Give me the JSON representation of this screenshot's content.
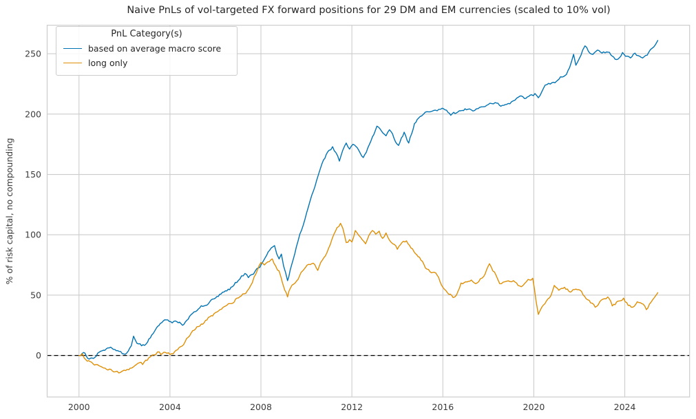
{
  "title": "Naive PnLs of vol-targeted FX forward positions for 29 DM and EM currencies (scaled to 10% vol)",
  "ylabel": "% of risk capital, no compounding",
  "legend": {
    "title": "PnL Category(s)",
    "entries": [
      {
        "label": "based on average macro score",
        "color": "#0173b2"
      },
      {
        "label": "long only",
        "color": "#de8f05"
      }
    ]
  },
  "colors": {
    "macro_line": "#0173b2",
    "long_only_line": "#de8f05",
    "grid": "#cccccc",
    "spine": "#cccccc",
    "zero_line": "#000000",
    "tick_text": "#3b3b3b",
    "title_text": "#262626"
  },
  "chart_data": {
    "type": "line",
    "title": "Naive PnLs of vol-targeted FX forward positions for 29 DM and EM currencies (scaled to 10% vol)",
    "xlabel": "",
    "ylabel": "% of risk capital, no compounding",
    "grid": true,
    "legend_position": "upper-left",
    "legend_title": "PnL Category(s)",
    "xlim": [
      1998.6,
      2026.85
    ],
    "ylim": [
      -34.4,
      273.6
    ],
    "xticks": [
      2000,
      2004,
      2008,
      2012,
      2016,
      2020,
      2024
    ],
    "yticks": [
      0,
      50,
      100,
      150,
      200,
      250
    ],
    "zero_line": {
      "y": 0,
      "style": "dashed",
      "color": "#000000"
    },
    "series": [
      {
        "name": "based on average macro score",
        "color": "#0173b2",
        "points": [
          [
            2000.0,
            0
          ],
          [
            2000.2,
            2.5
          ],
          [
            2000.45,
            -3
          ],
          [
            2000.7,
            -1.5
          ],
          [
            2000.95,
            3.5
          ],
          [
            2001.2,
            5.5
          ],
          [
            2001.45,
            6
          ],
          [
            2001.7,
            4
          ],
          [
            2001.9,
            1.5
          ],
          [
            2002.1,
            2
          ],
          [
            2002.3,
            8
          ],
          [
            2002.4,
            16
          ],
          [
            2002.55,
            10
          ],
          [
            2002.75,
            8
          ],
          [
            2002.95,
            9.5
          ],
          [
            2003.2,
            17
          ],
          [
            2003.45,
            24
          ],
          [
            2003.7,
            28.5
          ],
          [
            2003.9,
            29.5
          ],
          [
            2004.1,
            27
          ],
          [
            2004.3,
            28
          ],
          [
            2004.55,
            25
          ],
          [
            2004.8,
            30
          ],
          [
            2005.0,
            35
          ],
          [
            2005.25,
            38.5
          ],
          [
            2005.5,
            41
          ],
          [
            2005.75,
            44.5
          ],
          [
            2006.0,
            47.5
          ],
          [
            2006.25,
            51
          ],
          [
            2006.5,
            53.5
          ],
          [
            2006.75,
            57
          ],
          [
            2007.0,
            62
          ],
          [
            2007.15,
            66
          ],
          [
            2007.3,
            68
          ],
          [
            2007.45,
            64.5
          ],
          [
            2007.6,
            67
          ],
          [
            2007.75,
            70
          ],
          [
            2007.95,
            73
          ],
          [
            2008.1,
            78
          ],
          [
            2008.25,
            83
          ],
          [
            2008.45,
            89
          ],
          [
            2008.6,
            91
          ],
          [
            2008.7,
            84
          ],
          [
            2008.8,
            80
          ],
          [
            2008.9,
            84
          ],
          [
            2009.0,
            74
          ],
          [
            2009.17,
            62
          ],
          [
            2009.35,
            75
          ],
          [
            2009.56,
            90
          ],
          [
            2009.86,
            108
          ],
          [
            2010.16,
            128
          ],
          [
            2010.45,
            145
          ],
          [
            2010.75,
            162
          ],
          [
            2011.0,
            170
          ],
          [
            2011.15,
            173
          ],
          [
            2011.3,
            168
          ],
          [
            2011.45,
            161
          ],
          [
            2011.6,
            170
          ],
          [
            2011.75,
            176
          ],
          [
            2011.9,
            171
          ],
          [
            2012.05,
            175
          ],
          [
            2012.3,
            170
          ],
          [
            2012.5,
            164
          ],
          [
            2012.7,
            172
          ],
          [
            2012.9,
            181
          ],
          [
            2013.1,
            190
          ],
          [
            2013.3,
            186
          ],
          [
            2013.5,
            182
          ],
          [
            2013.65,
            187
          ],
          [
            2013.85,
            180
          ],
          [
            2014.05,
            174
          ],
          [
            2014.3,
            185
          ],
          [
            2014.5,
            176
          ],
          [
            2014.75,
            192
          ],
          [
            2015.0,
            198
          ],
          [
            2015.3,
            202
          ],
          [
            2015.6,
            203
          ],
          [
            2015.9,
            204
          ],
          [
            2016.1,
            203.5
          ],
          [
            2016.35,
            199
          ],
          [
            2016.6,
            201
          ],
          [
            2016.85,
            203
          ],
          [
            2017.1,
            204
          ],
          [
            2017.4,
            203
          ],
          [
            2017.7,
            206
          ],
          [
            2018.0,
            208
          ],
          [
            2018.3,
            209.5
          ],
          [
            2018.55,
            206.5
          ],
          [
            2018.8,
            208
          ],
          [
            2019.1,
            211
          ],
          [
            2019.4,
            215
          ],
          [
            2019.65,
            213
          ],
          [
            2019.9,
            216
          ],
          [
            2020.05,
            217
          ],
          [
            2020.2,
            213.5
          ],
          [
            2020.5,
            224
          ],
          [
            2020.8,
            226
          ],
          [
            2021.05,
            228
          ],
          [
            2021.3,
            231
          ],
          [
            2021.5,
            236
          ],
          [
            2021.65,
            243
          ],
          [
            2021.75,
            249.5
          ],
          [
            2021.85,
            240.5
          ],
          [
            2022.0,
            246
          ],
          [
            2022.15,
            253
          ],
          [
            2022.25,
            256.5
          ],
          [
            2022.4,
            252
          ],
          [
            2022.6,
            249.5
          ],
          [
            2022.8,
            253
          ],
          [
            2023.0,
            250.5
          ],
          [
            2023.2,
            251.5
          ],
          [
            2023.45,
            248
          ],
          [
            2023.7,
            245.5
          ],
          [
            2023.9,
            251
          ],
          [
            2024.1,
            248
          ],
          [
            2024.25,
            246.5
          ],
          [
            2024.45,
            250.5
          ],
          [
            2024.65,
            248
          ],
          [
            2024.85,
            247.5
          ],
          [
            2025.05,
            251
          ],
          [
            2025.2,
            254.5
          ],
          [
            2025.35,
            257.5
          ],
          [
            2025.45,
            261
          ]
        ]
      },
      {
        "name": "long only",
        "color": "#de8f05",
        "points": [
          [
            2000.0,
            0
          ],
          [
            2000.15,
            1.5
          ],
          [
            2000.3,
            -3.5
          ],
          [
            2000.55,
            -5.5
          ],
          [
            2000.75,
            -7.5
          ],
          [
            2001.0,
            -9.5
          ],
          [
            2001.15,
            -10.5
          ],
          [
            2001.4,
            -11.5
          ],
          [
            2001.6,
            -13.5
          ],
          [
            2001.75,
            -14.5
          ],
          [
            2001.9,
            -13
          ],
          [
            2002.05,
            -12.5
          ],
          [
            2002.25,
            -10.5
          ],
          [
            2002.45,
            -8.5
          ],
          [
            2002.65,
            -6
          ],
          [
            2002.8,
            -7.5
          ],
          [
            2003.0,
            -4
          ],
          [
            2003.15,
            -1
          ],
          [
            2003.3,
            0.5
          ],
          [
            2003.45,
            2.9
          ],
          [
            2003.6,
            0.8
          ],
          [
            2003.8,
            2.5
          ],
          [
            2004.0,
            0.8
          ],
          [
            2004.2,
            3
          ],
          [
            2004.4,
            6.5
          ],
          [
            2004.6,
            9
          ],
          [
            2004.8,
            15
          ],
          [
            2005.0,
            20.5
          ],
          [
            2005.25,
            24
          ],
          [
            2005.5,
            27
          ],
          [
            2005.75,
            32
          ],
          [
            2006.0,
            35.5
          ],
          [
            2006.2,
            38
          ],
          [
            2006.45,
            41
          ],
          [
            2006.7,
            43
          ],
          [
            2006.95,
            47.5
          ],
          [
            2007.2,
            51
          ],
          [
            2007.4,
            53.5
          ],
          [
            2007.55,
            58
          ],
          [
            2007.7,
            65
          ],
          [
            2007.85,
            71
          ],
          [
            2008.0,
            77
          ],
          [
            2008.15,
            75
          ],
          [
            2008.3,
            77.5
          ],
          [
            2008.5,
            80
          ],
          [
            2008.65,
            74
          ],
          [
            2008.8,
            70
          ],
          [
            2008.95,
            60
          ],
          [
            2009.05,
            54
          ],
          [
            2009.17,
            48.5
          ],
          [
            2009.3,
            56
          ],
          [
            2009.5,
            60
          ],
          [
            2009.7,
            66
          ],
          [
            2009.9,
            71.5
          ],
          [
            2010.1,
            75.5
          ],
          [
            2010.3,
            76.5
          ],
          [
            2010.5,
            70.5
          ],
          [
            2010.7,
            79
          ],
          [
            2010.9,
            85
          ],
          [
            2011.05,
            92
          ],
          [
            2011.2,
            100
          ],
          [
            2011.35,
            106
          ],
          [
            2011.5,
            109.5
          ],
          [
            2011.6,
            105.5
          ],
          [
            2011.75,
            93.5
          ],
          [
            2011.9,
            96
          ],
          [
            2012.0,
            94
          ],
          [
            2012.15,
            103.5
          ],
          [
            2012.3,
            99.5
          ],
          [
            2012.45,
            96
          ],
          [
            2012.6,
            92.5
          ],
          [
            2012.75,
            99.5
          ],
          [
            2012.9,
            103.5
          ],
          [
            2013.05,
            100.5
          ],
          [
            2013.2,
            103
          ],
          [
            2013.35,
            97
          ],
          [
            2013.5,
            101.5
          ],
          [
            2013.65,
            95.5
          ],
          [
            2013.8,
            92.5
          ],
          [
            2014.0,
            88
          ],
          [
            2014.2,
            93.5
          ],
          [
            2014.4,
            95
          ],
          [
            2014.6,
            89
          ],
          [
            2014.85,
            83.5
          ],
          [
            2015.1,
            78
          ],
          [
            2015.3,
            71.5
          ],
          [
            2015.5,
            68.5
          ],
          [
            2015.75,
            66.5
          ],
          [
            2016.0,
            56.5
          ],
          [
            2016.2,
            52
          ],
          [
            2016.45,
            48
          ],
          [
            2016.6,
            50
          ],
          [
            2016.8,
            60
          ],
          [
            2017.0,
            61
          ],
          [
            2017.25,
            62.5
          ],
          [
            2017.5,
            60
          ],
          [
            2017.8,
            65.5
          ],
          [
            2018.05,
            76
          ],
          [
            2018.2,
            70
          ],
          [
            2018.35,
            66
          ],
          [
            2018.5,
            59.5
          ],
          [
            2018.8,
            61.5
          ],
          [
            2019.1,
            62
          ],
          [
            2019.45,
            57
          ],
          [
            2019.75,
            63
          ],
          [
            2019.95,
            64
          ],
          [
            2020.1,
            45
          ],
          [
            2020.2,
            34
          ],
          [
            2020.35,
            40
          ],
          [
            2020.55,
            45
          ],
          [
            2020.75,
            49.5
          ],
          [
            2020.9,
            58
          ],
          [
            2021.1,
            54
          ],
          [
            2021.35,
            56.5
          ],
          [
            2021.6,
            52.5
          ],
          [
            2021.85,
            55
          ],
          [
            2022.1,
            53
          ],
          [
            2022.3,
            47
          ],
          [
            2022.5,
            43.5
          ],
          [
            2022.7,
            40
          ],
          [
            2022.9,
            44.5
          ],
          [
            2023.1,
            47
          ],
          [
            2023.25,
            48.5
          ],
          [
            2023.45,
            41
          ],
          [
            2023.7,
            45
          ],
          [
            2023.95,
            47.5
          ],
          [
            2024.15,
            41.5
          ],
          [
            2024.35,
            40
          ],
          [
            2024.55,
            44.5
          ],
          [
            2024.75,
            43
          ],
          [
            2024.95,
            38
          ],
          [
            2025.15,
            44
          ],
          [
            2025.3,
            48
          ],
          [
            2025.45,
            52
          ]
        ]
      }
    ]
  }
}
